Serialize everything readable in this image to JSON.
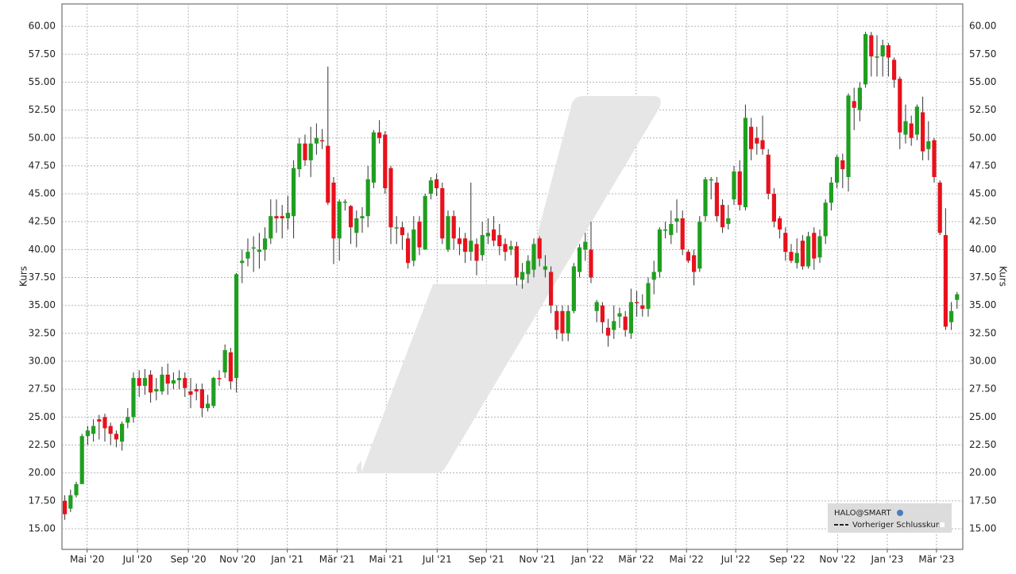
{
  "chart_data": {
    "type": "candlestick",
    "y_label": "Kurs",
    "legend": [
      "HALO@SMART",
      "Vorheriger Schlusskurs"
    ],
    "up_color": "#1f9f1f",
    "down_color": "#e8111c",
    "grid": true,
    "xlim": [
      -0.5,
      157
    ],
    "xticks": [
      {
        "value": 3.9,
        "label": "Mai '20"
      },
      {
        "value": 12.7,
        "label": "Jul '20"
      },
      {
        "value": 21.6,
        "label": "Sep '20"
      },
      {
        "value": 30.2,
        "label": "Nov '20"
      },
      {
        "value": 38.9,
        "label": "Jan '21"
      },
      {
        "value": 47.6,
        "label": "Mär '21"
      },
      {
        "value": 56.2,
        "label": "Mai '21"
      },
      {
        "value": 65.1,
        "label": "Jul '21"
      },
      {
        "value": 73.7,
        "label": "Sep '21"
      },
      {
        "value": 82.6,
        "label": "Nov '21"
      },
      {
        "value": 91.4,
        "label": "Jan '22"
      },
      {
        "value": 99.9,
        "label": "Mär '22"
      },
      {
        "value": 108.7,
        "label": "Mai '22"
      },
      {
        "value": 117.3,
        "label": "Jul '22"
      },
      {
        "value": 126.3,
        "label": "Sep '22"
      },
      {
        "value": 135.1,
        "label": "Nov '22"
      },
      {
        "value": 143.8,
        "label": "Jan '23"
      },
      {
        "value": 152.4,
        "label": "Mär '23"
      }
    ],
    "ylim": [
      13.15,
      62
    ],
    "yticks": [
      {
        "value": 15,
        "label": "15.00"
      },
      {
        "value": 17.5,
        "label": "17.50"
      },
      {
        "value": 20,
        "label": "20.00"
      },
      {
        "value": 22.5,
        "label": "22.50"
      },
      {
        "value": 25,
        "label": "25.00"
      },
      {
        "value": 27.5,
        "label": "27.50"
      },
      {
        "value": 30,
        "label": "30.00"
      },
      {
        "value": 32.5,
        "label": "32.50"
      },
      {
        "value": 35,
        "label": "35.00"
      },
      {
        "value": 37.5,
        "label": "37.50"
      },
      {
        "value": 40,
        "label": "40.00"
      },
      {
        "value": 42.5,
        "label": "42.50"
      },
      {
        "value": 45,
        "label": "45.00"
      },
      {
        "value": 47.5,
        "label": "47.50"
      },
      {
        "value": 50,
        "label": "50.00"
      },
      {
        "value": 52.5,
        "label": "52.50"
      },
      {
        "value": 55,
        "label": "55.00"
      },
      {
        "value": 57.5,
        "label": "57.50"
      },
      {
        "value": 60,
        "label": "60.00"
      }
    ],
    "open": [
      17.5,
      16.8,
      18,
      19,
      23.3,
      23.5,
      24.8,
      25,
      24.2,
      23.5,
      22.8,
      24.5,
      25,
      28.5,
      27.8,
      28.8,
      27.3,
      27.3,
      28.8,
      28,
      28.3,
      28.5,
      27.3,
      27.5,
      27.5,
      25.8,
      26,
      28.5,
      29,
      30.8,
      28.5,
      38.8,
      39.2,
      40.2,
      39.8,
      40,
      41,
      43,
      43,
      42.8,
      43,
      47.2,
      49.5,
      48,
      49.5,
      49.8,
      49.3,
      46,
      41,
      44.3,
      43.9,
      41.5,
      42.8,
      43,
      46,
      50.5,
      50.3,
      47.3,
      42,
      42,
      41,
      39,
      42.5,
      40,
      45,
      46.3,
      45.5,
      40,
      43,
      41,
      41,
      39.8,
      40.5,
      39.5,
      41.2,
      41.8,
      41.3,
      40.5,
      40,
      40.3,
      37.3,
      37.8,
      38.2,
      41,
      38.2,
      38,
      34.5,
      34.5,
      32.5,
      34.5,
      38,
      40,
      40,
      34.5,
      35,
      33,
      32.8,
      34,
      34,
      32.5,
      35.3,
      35,
      34.7,
      37.3,
      38,
      41.8,
      41.3,
      42.5,
      42.8,
      39.8,
      39.5,
      38.3,
      43,
      46.3,
      46,
      44,
      42.3,
      44.5,
      47,
      43.8,
      51,
      50,
      49.8,
      48.5,
      45,
      42.8,
      41.5,
      39.8,
      38.8,
      40.8,
      38.5,
      41.5,
      39.3,
      41.2,
      44.2,
      46,
      48,
      46.5,
      53.3,
      52.5,
      54.8,
      59.2,
      57.3,
      57.3,
      58.3,
      57,
      55.3,
      50.3,
      51.3,
      50.3,
      52.3,
      49,
      49.8,
      46,
      41.3,
      33.5,
      35.5
    ],
    "high": [
      18,
      18.5,
      19.2,
      23.5,
      24.2,
      24.8,
      25.2,
      25.3,
      24.5,
      23.8,
      24.6,
      25.8,
      29,
      29.2,
      29.3,
      29.2,
      28.5,
      29.5,
      29.8,
      29,
      29.2,
      29,
      28.5,
      28,
      28,
      27,
      28.6,
      29.2,
      31.5,
      31.2,
      37.9,
      40,
      41,
      41.2,
      41.5,
      42,
      44.5,
      44.5,
      44,
      44.8,
      48,
      50,
      50.3,
      51,
      51.3,
      50.8,
      56.4,
      46.5,
      44.5,
      44.5,
      44,
      43.5,
      43.8,
      47.5,
      50.7,
      51.6,
      50.6,
      47.5,
      43,
      42.5,
      41.5,
      43,
      43,
      45,
      46.5,
      46.8,
      46,
      43.5,
      43.5,
      42,
      41.5,
      46,
      41,
      42.5,
      42.8,
      43,
      42.3,
      41,
      40.8,
      40.7,
      38.8,
      39.5,
      41,
      41.2,
      39.5,
      38.5,
      35,
      35,
      35,
      38.8,
      40.5,
      41.5,
      42.5,
      35.5,
      35.3,
      33.8,
      35,
      34.8,
      34.5,
      36.5,
      36.3,
      36,
      37.5,
      39,
      42,
      42.5,
      43.5,
      44.5,
      43.5,
      40,
      40,
      43,
      46.5,
      46.5,
      46.5,
      44.5,
      44,
      47.5,
      48,
      53,
      51.8,
      51,
      52,
      49,
      45.5,
      43,
      42,
      40.5,
      41,
      41.3,
      41.6,
      42,
      41.8,
      44.5,
      46.5,
      48.5,
      48.6,
      54,
      54.5,
      55,
      59.5,
      59.5,
      59.2,
      58.8,
      58.5,
      57.2,
      55.5,
      53,
      52,
      53,
      53.7,
      51.5,
      50,
      46.2,
      43.7,
      35.3,
      36.2
    ],
    "low": [
      15.8,
      16.5,
      17.8,
      19,
      22.5,
      22.8,
      23,
      22.8,
      22.5,
      22.3,
      22,
      24,
      24.5,
      26.8,
      27,
      26.3,
      26.5,
      27,
      27,
      27.5,
      27.5,
      26.8,
      25.8,
      26.5,
      25,
      25.5,
      25.8,
      27.8,
      28.5,
      27.5,
      27.2,
      37,
      38.5,
      38,
      38.3,
      39,
      40.5,
      41.5,
      41,
      41.8,
      41,
      46.5,
      47.5,
      46.5,
      48.5,
      49,
      44,
      38.7,
      39,
      43.5,
      40.5,
      40.2,
      41.5,
      42,
      45.5,
      49.5,
      45,
      40.5,
      40.5,
      40,
      38.3,
      38.5,
      39.5,
      40,
      44.5,
      44.8,
      40.5,
      39.8,
      40,
      39.5,
      38.8,
      39,
      37.7,
      39,
      40.5,
      40.3,
      39.5,
      39,
      39.5,
      36.8,
      36.5,
      37,
      37.5,
      38.5,
      37.5,
      34.3,
      32,
      31.8,
      31.8,
      34.3,
      37.5,
      39,
      37,
      33.5,
      32.5,
      31.3,
      32,
      33,
      32.2,
      32,
      34,
      34,
      34,
      36,
      37.5,
      41,
      40.5,
      41.5,
      39.5,
      38.8,
      36.8,
      38,
      42.5,
      44.5,
      42.5,
      41.5,
      41.8,
      44,
      43.5,
      43.5,
      48,
      48.5,
      48.5,
      44.5,
      42,
      41,
      39,
      38.8,
      38.3,
      38.2,
      38.3,
      38.2,
      38.8,
      40.5,
      43.5,
      45.5,
      45.5,
      45.2,
      50.7,
      51.5,
      54.5,
      55.5,
      55.5,
      55.5,
      55.5,
      54.5,
      49,
      49.5,
      49.3,
      49.8,
      48,
      48,
      46,
      41.3,
      32.8,
      32.8,
      34.7
    ],
    "close": [
      16.3,
      18,
      19,
      23.3,
      23.8,
      24.2,
      24.6,
      24,
      23.5,
      23,
      24.4,
      25,
      28.5,
      27.8,
      28.5,
      27.2,
      27.5,
      28.8,
      28,
      28.3,
      28.5,
      27.6,
      27,
      27.3,
      25.8,
      26.2,
      28.5,
      28.4,
      31,
      28.2,
      37.8,
      39,
      39.8,
      40.2,
      40,
      41,
      43,
      42.8,
      42.8,
      43.3,
      47.3,
      49.5,
      48,
      49.5,
      50,
      49.7,
      44.2,
      41,
      44.3,
      44.3,
      42,
      42.8,
      43,
      46.3,
      50.5,
      50,
      45.5,
      42,
      42,
      41.3,
      38.8,
      41.8,
      40.2,
      44.8,
      46.2,
      45.5,
      41,
      43,
      41,
      40.5,
      39.8,
      40.8,
      39,
      41.3,
      41.5,
      40.8,
      40.3,
      39.8,
      40.3,
      37.5,
      38,
      39,
      40.5,
      39.2,
      38.5,
      35,
      32.8,
      32.5,
      34.5,
      38.5,
      40.2,
      40.7,
      37.5,
      35.3,
      33.5,
      32.3,
      33.6,
      34.3,
      32.8,
      35.3,
      35.2,
      34.7,
      37,
      38,
      41.8,
      41.8,
      42.3,
      42.8,
      40,
      39,
      38,
      42.5,
      46.3,
      46.3,
      43,
      42,
      42.8,
      47,
      44,
      51.8,
      49,
      49.5,
      49,
      45,
      42.5,
      41.8,
      39.8,
      39,
      39.7,
      38.5,
      41.2,
      39.2,
      41.2,
      44.2,
      46,
      48.3,
      47.2,
      53.8,
      52.7,
      54.5,
      59.3,
      57.3,
      57.3,
      58.3,
      57.2,
      55.2,
      50.5,
      51.5,
      50,
      52.8,
      48.8,
      49.7,
      46.5,
      41.5,
      33.1,
      34.5,
      36
    ]
  }
}
